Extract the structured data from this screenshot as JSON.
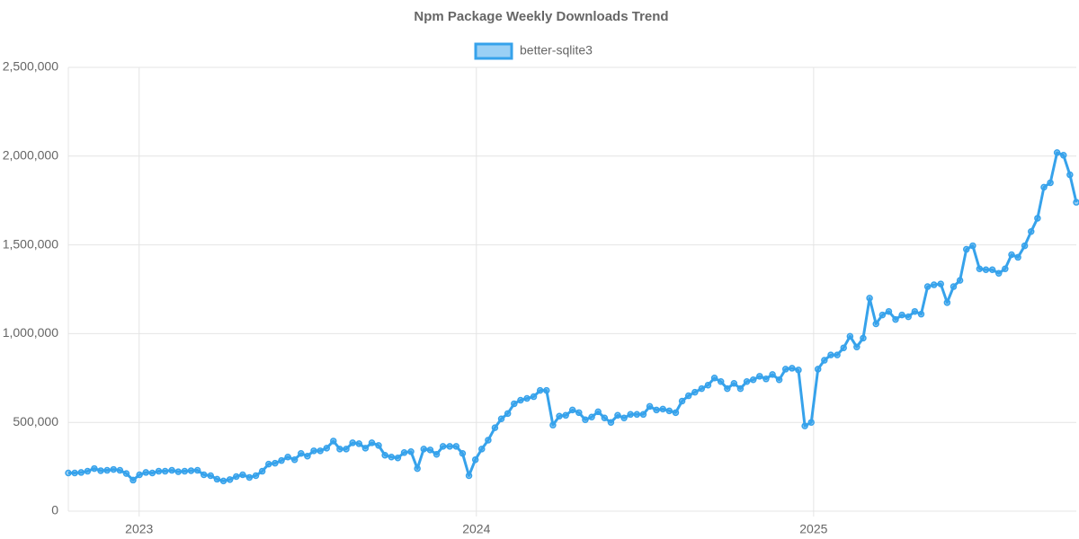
{
  "chart_data": {
    "type": "line",
    "title": "Npm Package Weekly Downloads Trend",
    "x": [
      2022.79,
      2022.809,
      2022.828,
      2022.847,
      2022.867,
      2022.886,
      2022.905,
      2022.924,
      2022.943,
      2022.962,
      2022.982,
      2023.001,
      2023.02,
      2023.039,
      2023.058,
      2023.077,
      2023.097,
      2023.116,
      2023.135,
      2023.154,
      2023.173,
      2023.192,
      2023.212,
      2023.231,
      2023.25,
      2023.269,
      2023.288,
      2023.307,
      2023.327,
      2023.346,
      2023.365,
      2023.384,
      2023.403,
      2023.422,
      2023.441,
      2023.461,
      2023.48,
      2023.499,
      2023.518,
      2023.537,
      2023.556,
      2023.576,
      2023.595,
      2023.614,
      2023.633,
      2023.652,
      2023.671,
      2023.69,
      2023.71,
      2023.729,
      2023.748,
      2023.767,
      2023.786,
      2023.806,
      2023.825,
      2023.844,
      2023.863,
      2023.882,
      2023.901,
      2023.921,
      2023.94,
      2023.959,
      2023.978,
      2023.997,
      2024.016,
      2024.035,
      2024.055,
      2024.074,
      2024.093,
      2024.112,
      2024.131,
      2024.15,
      2024.17,
      2024.189,
      2024.208,
      2024.227,
      2024.246,
      2024.265,
      2024.285,
      2024.304,
      2024.323,
      2024.342,
      2024.361,
      2024.38,
      2024.399,
      2024.419,
      2024.438,
      2024.457,
      2024.476,
      2024.495,
      2024.514,
      2024.534,
      2024.553,
      2024.572,
      2024.591,
      2024.61,
      2024.629,
      2024.648,
      2024.668,
      2024.687,
      2024.706,
      2024.725,
      2024.744,
      2024.764,
      2024.783,
      2024.802,
      2024.821,
      2024.84,
      2024.859,
      2024.878,
      2024.898,
      2024.917,
      2024.936,
      2024.955,
      2024.974,
      2024.993,
      2025.013,
      2025.032,
      2025.051,
      2025.07,
      2025.089,
      2025.108,
      2025.128,
      2025.147,
      2025.166,
      2025.185,
      2025.204,
      2025.223,
      2025.243,
      2025.262,
      2025.281,
      2025.3,
      2025.319,
      2025.338,
      2025.357,
      2025.377,
      2025.396,
      2025.415,
      2025.434,
      2025.453,
      2025.472,
      2025.492,
      2025.511,
      2025.53,
      2025.549,
      2025.568,
      2025.587,
      2025.606,
      2025.626,
      2025.645,
      2025.664,
      2025.683,
      2025.702,
      2025.722,
      2025.741,
      2025.76,
      2025.779
    ],
    "series": [
      {
        "name": "better-sqlite3",
        "color": "#36a2eb",
        "values": [
          215000,
          215000,
          218000,
          225000,
          240000,
          228000,
          230000,
          235000,
          230000,
          212000,
          175000,
          205000,
          218000,
          215000,
          225000,
          225000,
          230000,
          222000,
          225000,
          228000,
          230000,
          205000,
          200000,
          180000,
          170000,
          178000,
          195000,
          205000,
          190000,
          200000,
          225000,
          265000,
          270000,
          285000,
          305000,
          290000,
          325000,
          310000,
          340000,
          340000,
          355000,
          395000,
          350000,
          350000,
          385000,
          380000,
          355000,
          385000,
          370000,
          315000,
          305000,
          300000,
          330000,
          335000,
          240000,
          350000,
          345000,
          320000,
          365000,
          365000,
          365000,
          325000,
          200000,
          290000,
          350000,
          400000,
          470000,
          520000,
          550000,
          605000,
          625000,
          635000,
          645000,
          680000,
          680000,
          485000,
          535000,
          540000,
          570000,
          555000,
          515000,
          530000,
          560000,
          525000,
          500000,
          540000,
          525000,
          545000,
          545000,
          545000,
          590000,
          570000,
          575000,
          565000,
          555000,
          620000,
          650000,
          670000,
          690000,
          710000,
          750000,
          730000,
          690000,
          720000,
          690000,
          730000,
          740000,
          760000,
          745000,
          770000,
          740000,
          800000,
          805000,
          795000,
          480000,
          500000,
          800000,
          850000,
          880000,
          880000,
          920000,
          985000,
          925000,
          975000,
          1200000,
          1055000,
          1105000,
          1125000,
          1080000,
          1105000,
          1095000,
          1125000,
          1110000,
          1265000,
          1275000,
          1280000,
          1175000,
          1265000,
          1300000,
          1475000,
          1495000,
          1365000,
          1360000,
          1360000,
          1340000,
          1365000,
          1445000,
          1430000,
          1495000,
          1575000,
          1650000,
          1825000,
          1850000,
          2020000,
          2005000,
          1895000,
          1740000
        ]
      }
    ],
    "xlim": [
      2022.79,
      2025.779
    ],
    "xticks": [
      2023,
      2024,
      2025
    ],
    "ylim": [
      0,
      2500000
    ],
    "yticks": [
      0,
      {
        "value": 500000,
        "label": "500,000"
      },
      {
        "value": 1000000,
        "label": "1,000,000"
      },
      {
        "value": 1500000,
        "label": "1,500,000"
      },
      {
        "value": 2000000,
        "label": "2,000,000"
      },
      {
        "value": 2500000,
        "label": "2,500,000"
      }
    ],
    "grid": true
  }
}
